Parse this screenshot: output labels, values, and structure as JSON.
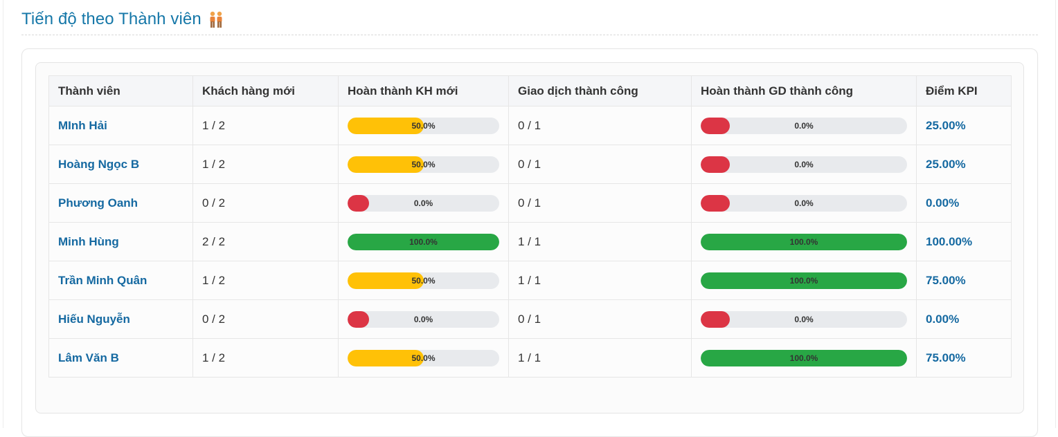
{
  "section": {
    "title": "Tiến độ theo Thành viên",
    "icon": "two-people-icon"
  },
  "colors": {
    "title": "#1577a8",
    "name_link": "#1569a1",
    "bar_track": "#e8eaed",
    "yellow": "#ffc107",
    "red": "#dc3545",
    "green": "#28a745"
  },
  "table": {
    "headers": [
      "Thành viên",
      "Khách hàng mới",
      "Hoàn thành KH mới",
      "Giao dịch thành công",
      "Hoàn thành GD thành công",
      "Điểm KPI"
    ],
    "rows": [
      {
        "name": "MInh Hải",
        "kh": "1 / 2",
        "kh_pct": 50,
        "kh_label": "50.0%",
        "gd": "0 / 1",
        "gd_pct": 0,
        "gd_label": "0.0%",
        "kpi": "25.00%"
      },
      {
        "name": "Hoàng Ngọc B",
        "kh": "1 / 2",
        "kh_pct": 50,
        "kh_label": "50.0%",
        "gd": "0 / 1",
        "gd_pct": 0,
        "gd_label": "0.0%",
        "kpi": "25.00%"
      },
      {
        "name": "Phương Oanh",
        "kh": "0 / 2",
        "kh_pct": 0,
        "kh_label": "0.0%",
        "gd": "0 / 1",
        "gd_pct": 0,
        "gd_label": "0.0%",
        "kpi": "0.00%"
      },
      {
        "name": "Minh Hùng",
        "kh": "2 / 2",
        "kh_pct": 100,
        "kh_label": "100.0%",
        "gd": "1 / 1",
        "gd_pct": 100,
        "gd_label": "100.0%",
        "kpi": "100.00%"
      },
      {
        "name": "Trần Minh Quân",
        "kh": "1 / 2",
        "kh_pct": 50,
        "kh_label": "50.0%",
        "gd": "1 / 1",
        "gd_pct": 100,
        "gd_label": "100.0%",
        "kpi": "75.00%"
      },
      {
        "name": "Hiếu Nguyễn",
        "kh": "0 / 2",
        "kh_pct": 0,
        "kh_label": "0.0%",
        "gd": "0 / 1",
        "gd_pct": 0,
        "gd_label": "0.0%",
        "kpi": "0.00%"
      },
      {
        "name": "Lâm Văn B",
        "kh": "1 / 2",
        "kh_pct": 50,
        "kh_label": "50.0%",
        "gd": "1 / 1",
        "gd_pct": 100,
        "gd_label": "100.0%",
        "kpi": "75.00%"
      }
    ]
  }
}
